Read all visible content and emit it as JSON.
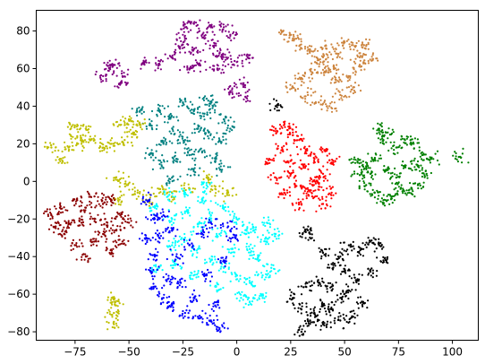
{
  "chart_data": {
    "type": "scatter",
    "title": "",
    "xlabel": "",
    "ylabel": "",
    "xlim": [
      -93,
      112
    ],
    "ylim": [
      -84.5,
      91
    ],
    "grid": false,
    "legend": "none",
    "x_ticks": [
      {
        "value": -75,
        "label": "−75"
      },
      {
        "value": -50,
        "label": "−50"
      },
      {
        "value": -25,
        "label": "−25"
      },
      {
        "value": 0,
        "label": "0"
      },
      {
        "value": 25,
        "label": "25"
      },
      {
        "value": 50,
        "label": "50"
      },
      {
        "value": 75,
        "label": "75"
      },
      {
        "value": 100,
        "label": "100"
      }
    ],
    "y_ticks": [
      {
        "value": -80,
        "label": "−80"
      },
      {
        "value": -60,
        "label": "−60"
      },
      {
        "value": -40,
        "label": "−40"
      },
      {
        "value": -20,
        "label": "−20"
      },
      {
        "value": 0,
        "label": "0"
      },
      {
        "value": 20,
        "label": "20"
      },
      {
        "value": 40,
        "label": "40"
      },
      {
        "value": 60,
        "label": "60"
      },
      {
        "value": 80,
        "label": "80"
      }
    ],
    "series": [
      {
        "color": "#800080",
        "points": [
          [
            -43,
            63
          ],
          [
            -36,
            62
          ],
          [
            -30,
            66
          ],
          [
            -27,
            72
          ],
          [
            -24,
            76
          ],
          [
            -20,
            70
          ],
          [
            -15,
            76
          ],
          [
            -11,
            72
          ],
          [
            -8,
            68
          ],
          [
            -5,
            66
          ],
          [
            -1,
            64
          ],
          [
            5,
            66
          ],
          [
            -24,
            82
          ],
          [
            -20,
            84
          ],
          [
            -12,
            82
          ],
          [
            -6,
            82
          ],
          [
            -3,
            78
          ],
          [
            -22,
            60
          ],
          [
            -17,
            62
          ],
          [
            -9,
            60
          ],
          [
            -3,
            48
          ],
          [
            2,
            52
          ],
          [
            4,
            45
          ],
          [
            -62,
            56
          ],
          [
            -57,
            62
          ],
          [
            -53,
            56
          ],
          [
            -54,
            52
          ],
          [
            -59,
            60
          ]
        ]
      },
      {
        "color": "#cd853f",
        "points": [
          [
            22,
            78
          ],
          [
            26,
            76
          ],
          [
            29,
            72
          ],
          [
            34,
            70
          ],
          [
            37,
            63
          ],
          [
            40,
            66
          ],
          [
            45,
            60
          ],
          [
            46,
            68
          ],
          [
            50,
            74
          ],
          [
            55,
            72
          ],
          [
            60,
            72
          ],
          [
            63,
            65
          ],
          [
            57,
            62
          ],
          [
            52,
            56
          ],
          [
            46,
            54
          ],
          [
            41,
            58
          ],
          [
            30,
            55
          ],
          [
            26,
            50
          ],
          [
            33,
            46
          ],
          [
            38,
            42
          ],
          [
            43,
            40
          ],
          [
            48,
            46
          ],
          [
            54,
            50
          ],
          [
            35,
            58
          ],
          [
            41,
            72
          ],
          [
            57,
            66
          ]
        ]
      },
      {
        "color": "#008080",
        "points": [
          [
            -45,
            37
          ],
          [
            -40,
            30
          ],
          [
            -36,
            38
          ],
          [
            -31,
            34
          ],
          [
            -25,
            42
          ],
          [
            -20,
            38
          ],
          [
            -15,
            36
          ],
          [
            -11,
            40
          ],
          [
            -6,
            33
          ],
          [
            -3,
            28
          ],
          [
            -8,
            22
          ],
          [
            -13,
            26
          ],
          [
            -18,
            28
          ],
          [
            -24,
            22
          ],
          [
            -29,
            25
          ],
          [
            -34,
            20
          ],
          [
            -40,
            15
          ],
          [
            -35,
            10
          ],
          [
            -28,
            12
          ],
          [
            -22,
            14
          ],
          [
            -16,
            16
          ],
          [
            -10,
            12
          ],
          [
            -7,
            6
          ],
          [
            -20,
            6
          ],
          [
            -30,
            2
          ],
          [
            -14,
            44
          ]
        ]
      },
      {
        "color": "#ff0000",
        "points": [
          [
            15,
            12
          ],
          [
            18,
            28
          ],
          [
            22,
            30
          ],
          [
            26,
            26
          ],
          [
            29,
            22
          ],
          [
            32,
            17
          ],
          [
            36,
            12
          ],
          [
            41,
            16
          ],
          [
            44,
            10
          ],
          [
            40,
            4
          ],
          [
            36,
            0
          ],
          [
            32,
            -4
          ],
          [
            27,
            -2
          ],
          [
            22,
            -6
          ],
          [
            18,
            2
          ],
          [
            24,
            10
          ],
          [
            31,
            8
          ],
          [
            35,
            -8
          ],
          [
            40,
            -12
          ],
          [
            44,
            -6
          ],
          [
            29,
            -12
          ],
          [
            21,
            18
          ],
          [
            38,
            -1
          ],
          [
            25,
            4
          ]
        ]
      },
      {
        "color": "#008000",
        "points": [
          [
            56,
            10
          ],
          [
            60,
            8
          ],
          [
            64,
            12
          ],
          [
            68,
            22
          ],
          [
            70,
            26
          ],
          [
            74,
            18
          ],
          [
            78,
            22
          ],
          [
            82,
            20
          ],
          [
            86,
            14
          ],
          [
            90,
            12
          ],
          [
            88,
            4
          ],
          [
            84,
            -2
          ],
          [
            80,
            -6
          ],
          [
            76,
            -4
          ],
          [
            72,
            -8
          ],
          [
            68,
            -10
          ],
          [
            64,
            -6
          ],
          [
            60,
            -2
          ],
          [
            56,
            4
          ],
          [
            62,
            4
          ],
          [
            70,
            6
          ],
          [
            78,
            8
          ],
          [
            84,
            8
          ],
          [
            74,
            2
          ],
          [
            103,
            13
          ],
          [
            66,
            28
          ]
        ]
      },
      {
        "color": "#bfbf00",
        "points": [
          [
            -86,
            18
          ],
          [
            -82,
            12
          ],
          [
            -78,
            18
          ],
          [
            -74,
            24
          ],
          [
            -70,
            28
          ],
          [
            -76,
            30
          ],
          [
            -72,
            20
          ],
          [
            -66,
            22
          ],
          [
            -62,
            18
          ],
          [
            -58,
            20
          ],
          [
            -54,
            30
          ],
          [
            -50,
            33
          ],
          [
            -45,
            30
          ],
          [
            -48,
            26
          ],
          [
            -52,
            22
          ],
          [
            -56,
            2
          ],
          [
            -51,
            -2
          ],
          [
            -55,
            -10
          ],
          [
            -46,
            -6
          ],
          [
            -41,
            -10
          ],
          [
            -36,
            -4
          ],
          [
            -30,
            -8
          ],
          [
            -22,
            -4
          ],
          [
            -14,
            2
          ],
          [
            -10,
            -4
          ],
          [
            -4,
            -6
          ],
          [
            -58,
            -62
          ],
          [
            -57,
            -70
          ],
          [
            -56,
            -66
          ],
          [
            -57,
            -76
          ]
        ]
      },
      {
        "color": "#8b0000",
        "points": [
          [
            -86,
            -18
          ],
          [
            -82,
            -14
          ],
          [
            -78,
            -22
          ],
          [
            -74,
            -10
          ],
          [
            -70,
            -14
          ],
          [
            -66,
            -8
          ],
          [
            -62,
            -12
          ],
          [
            -58,
            -10
          ],
          [
            -54,
            -18
          ],
          [
            -50,
            -22
          ],
          [
            -53,
            -32
          ],
          [
            -58,
            -38
          ],
          [
            -62,
            -28
          ],
          [
            -66,
            -32
          ],
          [
            -70,
            -40
          ],
          [
            -75,
            -34
          ],
          [
            -80,
            -28
          ],
          [
            -84,
            -24
          ],
          [
            -72,
            -22
          ],
          [
            -66,
            -20
          ],
          [
            -60,
            -22
          ],
          [
            -56,
            -26
          ]
        ]
      },
      {
        "color": "#00ffff",
        "points": [
          [
            -38,
            -14
          ],
          [
            -30,
            -20
          ],
          [
            -24,
            -16
          ],
          [
            -18,
            -24
          ],
          [
            -12,
            -18
          ],
          [
            -6,
            -14
          ],
          [
            0,
            -20
          ],
          [
            4,
            -26
          ],
          [
            6,
            -36
          ],
          [
            10,
            -40
          ],
          [
            14,
            -32
          ],
          [
            18,
            -28
          ],
          [
            14,
            -22
          ],
          [
            8,
            -26
          ],
          [
            16,
            -46
          ],
          [
            12,
            -50
          ],
          [
            6,
            -54
          ],
          [
            0,
            -50
          ],
          [
            -6,
            -46
          ],
          [
            -12,
            -42
          ],
          [
            -18,
            -36
          ],
          [
            -24,
            -30
          ],
          [
            -30,
            -34
          ],
          [
            -36,
            -46
          ],
          [
            -28,
            -44
          ],
          [
            -20,
            -50
          ],
          [
            -10,
            -56
          ],
          [
            -2,
            -36
          ],
          [
            -8,
            -28
          ],
          [
            -16,
            -10
          ],
          [
            -24,
            -6
          ],
          [
            -32,
            -8
          ],
          [
            12,
            -62
          ],
          [
            6,
            -64
          ],
          [
            2,
            -62
          ],
          [
            -14,
            -2
          ]
        ]
      },
      {
        "color": "#0000ff",
        "points": [
          [
            -42,
            -10
          ],
          [
            -38,
            -20
          ],
          [
            -36,
            -30
          ],
          [
            -38,
            -40
          ],
          [
            -40,
            -48
          ],
          [
            -38,
            -56
          ],
          [
            -34,
            -62
          ],
          [
            -30,
            -66
          ],
          [
            -24,
            -70
          ],
          [
            -18,
            -72
          ],
          [
            -12,
            -74
          ],
          [
            -8,
            -78
          ],
          [
            -20,
            -62
          ],
          [
            -26,
            -54
          ],
          [
            -32,
            -52
          ],
          [
            -28,
            -40
          ],
          [
            -22,
            -34
          ],
          [
            -16,
            -28
          ],
          [
            -12,
            -22
          ],
          [
            -4,
            -24
          ],
          [
            -6,
            -42
          ],
          [
            -14,
            -50
          ],
          [
            -10,
            -66
          ],
          [
            -2,
            -30
          ],
          [
            -30,
            -26
          ],
          [
            -34,
            -18
          ],
          [
            -42,
            -30
          ]
        ]
      },
      {
        "color": "#000000",
        "points": [
          [
            32,
            -27
          ],
          [
            34,
            -28
          ],
          [
            40,
            -38
          ],
          [
            44,
            -44
          ],
          [
            48,
            -40
          ],
          [
            52,
            -34
          ],
          [
            58,
            -36
          ],
          [
            62,
            -32
          ],
          [
            66,
            -34
          ],
          [
            68,
            -42
          ],
          [
            62,
            -48
          ],
          [
            56,
            -52
          ],
          [
            52,
            -58
          ],
          [
            48,
            -62
          ],
          [
            44,
            -68
          ],
          [
            40,
            -66
          ],
          [
            36,
            -70
          ],
          [
            30,
            -68
          ],
          [
            26,
            -62
          ],
          [
            32,
            -56
          ],
          [
            38,
            -54
          ],
          [
            44,
            -56
          ],
          [
            50,
            -48
          ],
          [
            58,
            -64
          ],
          [
            54,
            -72
          ],
          [
            48,
            -74
          ],
          [
            40,
            -76
          ],
          [
            34,
            -74
          ],
          [
            30,
            -80
          ],
          [
            18,
            40
          ]
        ]
      }
    ]
  }
}
